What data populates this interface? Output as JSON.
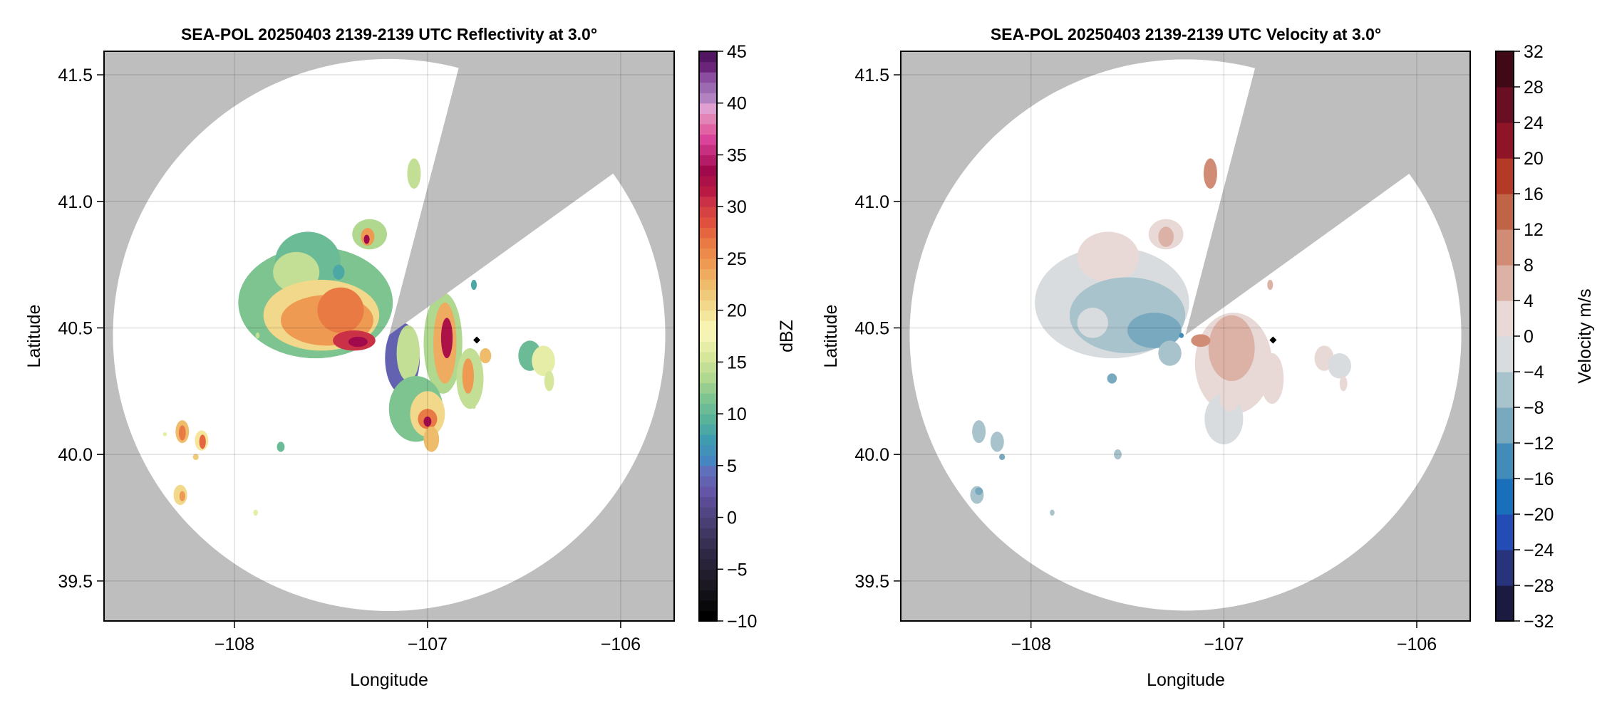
{
  "chart_data": [
    {
      "type": "heatmap",
      "title": "SEA-POL 20250403 2139-2139 UTC Reflectivity at 3.0°",
      "xlabel": "Longitude",
      "ylabel": "Latitude",
      "xlim": [
        -108.675,
        -105.723
      ],
      "ylim": [
        39.342,
        41.593
      ],
      "xticks": [
        -108,
        -107,
        -106
      ],
      "xtick_labels": [
        "−108",
        "−107",
        "−106"
      ],
      "yticks": [
        39.5,
        40.0,
        40.5,
        41.0,
        41.5
      ],
      "ytick_labels": [
        "39.5",
        "40.0",
        "40.5",
        "41.0",
        "41.5"
      ],
      "grid": true,
      "missing_color": "#bebebe",
      "colorbar": {
        "label": "dBZ",
        "range": [
          -10,
          45
        ],
        "step": 1,
        "ticks": [
          -10,
          -5,
          0,
          5,
          10,
          15,
          20,
          25,
          30,
          35,
          40,
          45
        ],
        "tick_labels": [
          "−10",
          "−5",
          "0",
          "5",
          "10",
          "15",
          "20",
          "25",
          "30",
          "35",
          "40",
          "45"
        ],
        "stops": [
          [
            -10,
            "#000000"
          ],
          [
            -7,
            "#1b1822"
          ],
          [
            -4,
            "#2f2844"
          ],
          [
            -1,
            "#4a3f72"
          ],
          [
            1,
            "#5a4b94"
          ],
          [
            2,
            "#6555a7"
          ],
          [
            4,
            "#5f6fba"
          ],
          [
            5,
            "#4585c0"
          ],
          [
            7,
            "#3f9cb0"
          ],
          [
            9,
            "#58b39a"
          ],
          [
            11,
            "#7ec491"
          ],
          [
            13,
            "#b0d88f"
          ],
          [
            15,
            "#d6e69a"
          ],
          [
            17,
            "#f5f4b4"
          ],
          [
            18,
            "#f8f3b0"
          ],
          [
            20,
            "#f1d88a"
          ],
          [
            22,
            "#efbc6c"
          ],
          [
            24,
            "#ee9a52"
          ],
          [
            26,
            "#ea7a44"
          ],
          [
            28,
            "#e0503e"
          ],
          [
            30,
            "#cb3146"
          ],
          [
            31,
            "#b81a44"
          ],
          [
            33,
            "#a00a4c"
          ],
          [
            34,
            "#b41c68"
          ],
          [
            36,
            "#d9449a"
          ],
          [
            37,
            "#e263a4"
          ],
          [
            38,
            "#e285b6"
          ],
          [
            39,
            "#df9fd0"
          ],
          [
            40,
            "#b283c0"
          ],
          [
            41,
            "#9c6ab0"
          ],
          [
            42,
            "#8b4d9f"
          ],
          [
            43,
            "#6a2479"
          ],
          [
            44,
            "#511562"
          ],
          [
            45,
            "#3b0050"
          ]
        ]
      },
      "radar": {
        "lon": -107.199,
        "lat": 40.472,
        "max_range_deg_lon": 1.43,
        "blocked_sector_az": [
          14.6,
          54.2
        ]
      },
      "marker": {
        "lon": -106.745,
        "lat": 40.452,
        "symbol": "diamond"
      },
      "echoes": [
        {
          "lon": -107.58,
          "lat": 40.6,
          "rlon": 0.4,
          "rlat": 0.22,
          "value": 11
        },
        {
          "lon": -107.62,
          "lat": 40.76,
          "rlon": 0.17,
          "rlat": 0.12,
          "value": 10
        },
        {
          "lon": -107.68,
          "lat": 40.72,
          "rlon": 0.12,
          "rlat": 0.08,
          "value": 14
        },
        {
          "lon": -107.55,
          "lat": 40.55,
          "rlon": 0.3,
          "rlat": 0.14,
          "value": 20
        },
        {
          "lon": -107.52,
          "lat": 40.53,
          "rlon": 0.24,
          "rlat": 0.1,
          "value": 24
        },
        {
          "lon": -107.45,
          "lat": 40.57,
          "rlon": 0.12,
          "rlat": 0.09,
          "value": 26
        },
        {
          "lon": -107.38,
          "lat": 40.45,
          "rlon": 0.11,
          "rlat": 0.04,
          "value": 30
        },
        {
          "lon": -107.36,
          "lat": 40.445,
          "rlon": 0.05,
          "rlat": 0.02,
          "value": 33
        },
        {
          "lon": -107.3,
          "lat": 40.87,
          "rlon": 0.09,
          "rlat": 0.06,
          "value": 13
        },
        {
          "lon": -107.31,
          "lat": 40.86,
          "rlon": 0.035,
          "rlat": 0.035,
          "value": 24
        },
        {
          "lon": -107.315,
          "lat": 40.85,
          "rlon": 0.015,
          "rlat": 0.018,
          "value": 33
        },
        {
          "lon": -107.13,
          "lat": 40.38,
          "rlon": 0.09,
          "rlat": 0.14,
          "value": 3
        },
        {
          "lon": -107.1,
          "lat": 40.4,
          "rlon": 0.06,
          "rlat": 0.11,
          "value": 14
        },
        {
          "lon": -106.92,
          "lat": 40.44,
          "rlon": 0.1,
          "rlat": 0.2,
          "value": 13
        },
        {
          "lon": -106.91,
          "lat": 40.44,
          "rlon": 0.06,
          "rlat": 0.16,
          "value": 23
        },
        {
          "lon": -106.9,
          "lat": 40.46,
          "rlon": 0.03,
          "rlat": 0.08,
          "value": 32
        },
        {
          "lon": -107.06,
          "lat": 40.18,
          "rlon": 0.14,
          "rlat": 0.13,
          "value": 11
        },
        {
          "lon": -107.0,
          "lat": 40.16,
          "rlon": 0.09,
          "rlat": 0.09,
          "value": 20
        },
        {
          "lon": -107.0,
          "lat": 40.14,
          "rlon": 0.05,
          "rlat": 0.04,
          "value": 26
        },
        {
          "lon": -107.0,
          "lat": 40.13,
          "rlon": 0.02,
          "rlat": 0.02,
          "value": 33
        },
        {
          "lon": -106.98,
          "lat": 40.06,
          "rlon": 0.04,
          "rlat": 0.05,
          "value": 22
        },
        {
          "lon": -106.78,
          "lat": 40.3,
          "rlon": 0.07,
          "rlat": 0.12,
          "value": 14
        },
        {
          "lon": -106.79,
          "lat": 40.31,
          "rlon": 0.03,
          "rlat": 0.07,
          "value": 24
        },
        {
          "lon": -106.7,
          "lat": 40.39,
          "rlon": 0.03,
          "rlat": 0.03,
          "value": 22
        },
        {
          "lon": -106.47,
          "lat": 40.39,
          "rlon": 0.06,
          "rlat": 0.06,
          "value": 10
        },
        {
          "lon": -106.4,
          "lat": 40.37,
          "rlon": 0.06,
          "rlat": 0.06,
          "value": 16
        },
        {
          "lon": -106.37,
          "lat": 40.29,
          "rlon": 0.025,
          "rlat": 0.04,
          "value": 15
        },
        {
          "lon": -107.07,
          "lat": 41.11,
          "rlon": 0.035,
          "rlat": 0.06,
          "value": 14
        },
        {
          "lon": -107.46,
          "lat": 40.72,
          "rlon": 0.03,
          "rlat": 0.03,
          "value": 8
        },
        {
          "lon": -106.76,
          "lat": 40.67,
          "rlon": 0.015,
          "rlat": 0.02,
          "value": 8
        },
        {
          "lon": -108.27,
          "lat": 40.09,
          "rlon": 0.035,
          "rlat": 0.045,
          "value": 22
        },
        {
          "lon": -108.27,
          "lat": 40.085,
          "rlon": 0.018,
          "rlat": 0.03,
          "value": 26
        },
        {
          "lon": -108.17,
          "lat": 40.055,
          "rlon": 0.035,
          "rlat": 0.04,
          "value": 19
        },
        {
          "lon": -108.165,
          "lat": 40.05,
          "rlon": 0.017,
          "rlat": 0.028,
          "value": 27
        },
        {
          "lon": -108.28,
          "lat": 39.84,
          "rlon": 0.035,
          "rlat": 0.04,
          "value": 20
        },
        {
          "lon": -108.27,
          "lat": 39.835,
          "rlon": 0.015,
          "rlat": 0.02,
          "value": 24
        },
        {
          "lon": -108.2,
          "lat": 39.99,
          "rlon": 0.015,
          "rlat": 0.012,
          "value": 21
        },
        {
          "lon": -107.76,
          "lat": 40.03,
          "rlon": 0.02,
          "rlat": 0.02,
          "value": 10
        },
        {
          "lon": -107.89,
          "lat": 39.77,
          "rlon": 0.012,
          "rlat": 0.012,
          "value": 16
        },
        {
          "lon": -108.36,
          "lat": 40.08,
          "rlon": 0.01,
          "rlat": 0.008,
          "value": 16
        },
        {
          "lon": -107.88,
          "lat": 40.47,
          "rlon": 0.01,
          "rlat": 0.012,
          "value": 14
        },
        {
          "lon": -106.76,
          "lat": 40.19,
          "rlon": 0.01,
          "rlat": 0.01,
          "value": 14
        }
      ]
    },
    {
      "type": "heatmap",
      "title": "SEA-POL 20250403 2139-2139 UTC Velocity at 3.0°",
      "xlabel": "Longitude",
      "ylabel": "Latitude",
      "xlim": [
        -108.675,
        -105.723
      ],
      "ylim": [
        39.342,
        41.593
      ],
      "xticks": [
        -108,
        -107,
        -106
      ],
      "xtick_labels": [
        "−108",
        "−107",
        "−106"
      ],
      "yticks": [
        39.5,
        40.0,
        40.5,
        41.0,
        41.5
      ],
      "ytick_labels": [
        "39.5",
        "40.0",
        "40.5",
        "41.0",
        "41.5"
      ],
      "grid": true,
      "missing_color": "#bebebe",
      "colorbar": {
        "label": "Velocity m/s",
        "range": [
          -32,
          32
        ],
        "step": 4,
        "ticks": [
          -32,
          -28,
          -24,
          -20,
          -16,
          -12,
          -8,
          -4,
          0,
          4,
          8,
          12,
          16,
          20,
          24,
          28,
          32
        ],
        "tick_labels": [
          "−32",
          "−28",
          "−24",
          "−20",
          "−16",
          "−12",
          "−8",
          "−4",
          "0",
          "4",
          "8",
          "12",
          "16",
          "20",
          "24",
          "28",
          "32"
        ],
        "bands": [
          "#1b1a40",
          "#27337a",
          "#234db5",
          "#1a6fbb",
          "#438cb9",
          "#78a9bf",
          "#a9c3cc",
          "#d8dcdf",
          "#e8d9d6",
          "#dcb2a6",
          "#d08c74",
          "#c06447",
          "#b23a27",
          "#8d1527",
          "#6a0e23",
          "#3f0a15"
        ]
      },
      "radar": {
        "lon": -107.199,
        "lat": 40.472,
        "max_range_deg_lon": 1.43,
        "blocked_sector_az": [
          14.6,
          54.2
        ]
      },
      "marker": {
        "lon": -106.745,
        "lat": 40.452,
        "symbol": "diamond"
      },
      "echoes": [
        {
          "lon": -107.58,
          "lat": 40.6,
          "rlon": 0.4,
          "rlat": 0.22,
          "value": -2
        },
        {
          "lon": -107.6,
          "lat": 40.78,
          "rlon": 0.16,
          "rlat": 0.1,
          "value": 2
        },
        {
          "lon": -107.5,
          "lat": 40.55,
          "rlon": 0.3,
          "rlat": 0.15,
          "value": -6
        },
        {
          "lon": -107.68,
          "lat": 40.52,
          "rlon": 0.08,
          "rlat": 0.06,
          "value": -2
        },
        {
          "lon": -107.36,
          "lat": 40.49,
          "rlon": 0.14,
          "rlat": 0.07,
          "value": -10
        },
        {
          "lon": -107.22,
          "lat": 40.47,
          "rlon": 0.012,
          "rlat": 0.01,
          "value": -14
        },
        {
          "lon": -107.28,
          "lat": 40.4,
          "rlon": 0.06,
          "rlat": 0.05,
          "value": -6
        },
        {
          "lon": -107.3,
          "lat": 40.87,
          "rlon": 0.09,
          "rlat": 0.06,
          "value": 2
        },
        {
          "lon": -107.3,
          "lat": 40.86,
          "rlon": 0.04,
          "rlat": 0.04,
          "value": 6
        },
        {
          "lon": -107.07,
          "lat": 41.11,
          "rlon": 0.035,
          "rlat": 0.06,
          "value": 10
        },
        {
          "lon": -106.95,
          "lat": 40.36,
          "rlon": 0.2,
          "rlat": 0.2,
          "value": 2
        },
        {
          "lon": -106.96,
          "lat": 40.42,
          "rlon": 0.12,
          "rlat": 0.13,
          "value": 6
        },
        {
          "lon": -107.12,
          "lat": 40.45,
          "rlon": 0.05,
          "rlat": 0.025,
          "value": 10
        },
        {
          "lon": -107.0,
          "lat": 40.14,
          "rlon": 0.1,
          "rlat": 0.1,
          "value": -2
        },
        {
          "lon": -106.97,
          "lat": 40.22,
          "rlon": 0.05,
          "rlat": 0.05,
          "value": 2
        },
        {
          "lon": -106.75,
          "lat": 40.3,
          "rlon": 0.06,
          "rlat": 0.1,
          "value": 2
        },
        {
          "lon": -106.48,
          "lat": 40.38,
          "rlon": 0.05,
          "rlat": 0.05,
          "value": 2
        },
        {
          "lon": -106.4,
          "lat": 40.35,
          "rlon": 0.06,
          "rlat": 0.05,
          "value": -2
        },
        {
          "lon": -106.38,
          "lat": 40.28,
          "rlon": 0.02,
          "rlat": 0.03,
          "value": 2
        },
        {
          "lon": -107.58,
          "lat": 40.3,
          "rlon": 0.025,
          "rlat": 0.02,
          "value": -10
        },
        {
          "lon": -108.27,
          "lat": 40.09,
          "rlon": 0.035,
          "rlat": 0.045,
          "value": -6
        },
        {
          "lon": -108.175,
          "lat": 40.05,
          "rlon": 0.035,
          "rlat": 0.04,
          "value": -6
        },
        {
          "lon": -108.28,
          "lat": 39.84,
          "rlon": 0.035,
          "rlat": 0.035,
          "value": -8
        },
        {
          "lon": -108.27,
          "lat": 39.855,
          "rlon": 0.02,
          "rlat": 0.015,
          "value": -10
        },
        {
          "lon": -108.15,
          "lat": 39.99,
          "rlon": 0.015,
          "rlat": 0.012,
          "value": -10
        },
        {
          "lon": -107.55,
          "lat": 40.0,
          "rlon": 0.02,
          "rlat": 0.02,
          "value": -6
        },
        {
          "lon": -107.89,
          "lat": 39.77,
          "rlon": 0.012,
          "rlat": 0.012,
          "value": -6
        },
        {
          "lon": -106.76,
          "lat": 40.67,
          "rlon": 0.015,
          "rlat": 0.02,
          "value": 6
        }
      ]
    }
  ]
}
